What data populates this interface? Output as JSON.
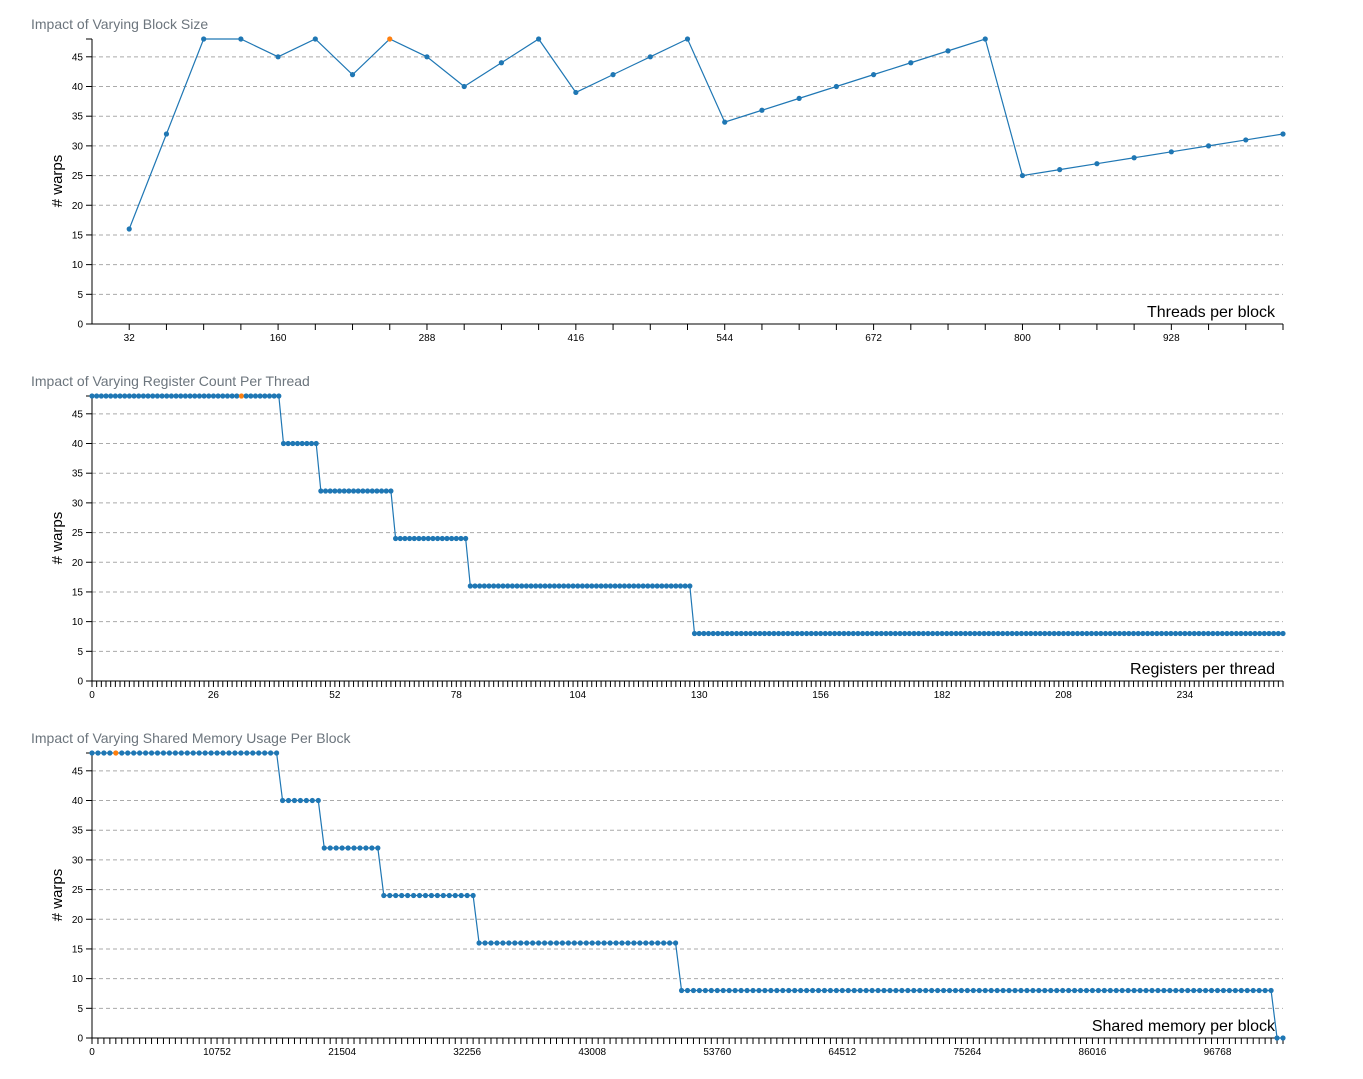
{
  "colors": {
    "series": "#1f77b4",
    "highlight": "#ff7f0e",
    "grid": "#aaaaaa",
    "title": "#6c757d"
  },
  "chart_data": [
    {
      "type": "line",
      "title": "Impact of Varying Block Size",
      "xlabel": "Threads per block",
      "ylabel": "# warps",
      "xlim": [
        0,
        1024
      ],
      "ylim": [
        0,
        48
      ],
      "yticks": [
        0,
        5,
        10,
        15,
        20,
        25,
        30,
        35,
        40,
        45
      ],
      "xtick_labels": [
        32,
        160,
        288,
        416,
        544,
        672,
        800,
        928
      ],
      "grid": "horizontal dashed",
      "highlight_x": 256,
      "x": [
        32,
        64,
        96,
        128,
        160,
        192,
        224,
        256,
        288,
        320,
        352,
        384,
        416,
        448,
        480,
        512,
        544,
        576,
        608,
        640,
        672,
        704,
        736,
        768,
        800,
        832,
        864,
        896,
        928,
        960,
        992,
        1024
      ],
      "y": [
        16,
        32,
        48,
        48,
        45,
        48,
        42,
        48,
        45,
        40,
        44,
        48,
        39,
        42,
        45,
        48,
        34,
        36,
        38,
        40,
        42,
        44,
        46,
        48,
        25,
        26,
        27,
        28,
        29,
        30,
        31,
        32
      ]
    },
    {
      "type": "line",
      "title": "Impact of Varying Register Count Per Thread",
      "xlabel": "Registers per thread",
      "ylabel": "# warps",
      "xlim": [
        0,
        255
      ],
      "ylim": [
        0,
        48
      ],
      "yticks": [
        0,
        5,
        10,
        15,
        20,
        25,
        30,
        35,
        40,
        45
      ],
      "xtick_labels": [
        0,
        26,
        52,
        78,
        104,
        130,
        156,
        182,
        208,
        234
      ],
      "grid": "horizontal dashed",
      "highlight_x": 32,
      "x": [
        0,
        1,
        2,
        3,
        4,
        5,
        6,
        7,
        8,
        9,
        10,
        11,
        12,
        13,
        14,
        15,
        16,
        17,
        18,
        19,
        20,
        21,
        22,
        23,
        24,
        25,
        26,
        27,
        28,
        29,
        30,
        31,
        32,
        33,
        34,
        35,
        36,
        37,
        38,
        39,
        40,
        41,
        42,
        43,
        44,
        45,
        46,
        47,
        48,
        49,
        50,
        51,
        52,
        53,
        54,
        55,
        56,
        57,
        58,
        59,
        60,
        61,
        62,
        63,
        64,
        65,
        66,
        67,
        68,
        69,
        70,
        71,
        72,
        73,
        74,
        75,
        76,
        77,
        78,
        79,
        80,
        81,
        82,
        83,
        84,
        85,
        86,
        87,
        88,
        89,
        90,
        91,
        92,
        93,
        94,
        95,
        96,
        97,
        98,
        99,
        100,
        101,
        102,
        103,
        104,
        105,
        106,
        107,
        108,
        109,
        110,
        111,
        112,
        113,
        114,
        115,
        116,
        117,
        118,
        119,
        120,
        121,
        122,
        123,
        124,
        125,
        126,
        127,
        128,
        129,
        130,
        131,
        132,
        133,
        134,
        135,
        136,
        137,
        138,
        139,
        140,
        141,
        142,
        143,
        144,
        145,
        146,
        147,
        148,
        149,
        150,
        151,
        152,
        153,
        154,
        155,
        156,
        157,
        158,
        159,
        160,
        161,
        162,
        163,
        164,
        165,
        166,
        167,
        168,
        169,
        170,
        171,
        172,
        173,
        174,
        175,
        176,
        177,
        178,
        179,
        180,
        181,
        182,
        183,
        184,
        185,
        186,
        187,
        188,
        189,
        190,
        191,
        192,
        193,
        194,
        195,
        196,
        197,
        198,
        199,
        200,
        201,
        202,
        203,
        204,
        205,
        206,
        207,
        208,
        209,
        210,
        211,
        212,
        213,
        214,
        215,
        216,
        217,
        218,
        219,
        220,
        221,
        222,
        223,
        224,
        225,
        226,
        227,
        228,
        229,
        230,
        231,
        232,
        233,
        234,
        235,
        236,
        237,
        238,
        239,
        240,
        241,
        242,
        243,
        244,
        245,
        246,
        247,
        248,
        249,
        250,
        251,
        252,
        253,
        254,
        255
      ],
      "y": [
        48,
        48,
        48,
        48,
        48,
        48,
        48,
        48,
        48,
        48,
        48,
        48,
        48,
        48,
        48,
        48,
        48,
        48,
        48,
        48,
        48,
        48,
        48,
        48,
        48,
        48,
        48,
        48,
        48,
        48,
        48,
        48,
        48,
        48,
        48,
        48,
        48,
        48,
        48,
        48,
        48,
        40,
        40,
        40,
        40,
        40,
        40,
        40,
        40,
        32,
        32,
        32,
        32,
        32,
        32,
        32,
        32,
        32,
        32,
        32,
        32,
        32,
        32,
        32,
        32,
        24,
        24,
        24,
        24,
        24,
        24,
        24,
        24,
        24,
        24,
        24,
        24,
        24,
        24,
        24,
        24,
        16,
        16,
        16,
        16,
        16,
        16,
        16,
        16,
        16,
        16,
        16,
        16,
        16,
        16,
        16,
        16,
        16,
        16,
        16,
        16,
        16,
        16,
        16,
        16,
        16,
        16,
        16,
        16,
        16,
        16,
        16,
        16,
        16,
        16,
        16,
        16,
        16,
        16,
        16,
        16,
        16,
        16,
        16,
        16,
        16,
        16,
        16,
        16,
        8,
        8,
        8,
        8,
        8,
        8,
        8,
        8,
        8,
        8,
        8,
        8,
        8,
        8,
        8,
        8,
        8,
        8,
        8,
        8,
        8,
        8,
        8,
        8,
        8,
        8,
        8,
        8,
        8,
        8,
        8,
        8,
        8,
        8,
        8,
        8,
        8,
        8,
        8,
        8,
        8,
        8,
        8,
        8,
        8,
        8,
        8,
        8,
        8,
        8,
        8,
        8,
        8,
        8,
        8,
        8,
        8,
        8,
        8,
        8,
        8,
        8,
        8,
        8,
        8,
        8,
        8,
        8,
        8,
        8,
        8,
        8,
        8,
        8,
        8,
        8,
        8,
        8,
        8,
        8,
        8,
        8,
        8,
        8,
        8,
        8,
        8,
        8,
        8,
        8,
        8,
        8,
        8,
        8,
        8,
        8,
        8,
        8,
        8,
        8,
        8,
        8,
        8,
        8,
        8,
        8,
        8,
        8,
        8,
        8,
        8,
        8,
        8,
        8,
        8,
        8,
        8,
        8,
        8,
        8,
        8,
        8,
        8,
        8,
        8,
        8,
        8
      ]
    },
    {
      "type": "line",
      "title": "Impact of Varying Shared Memory Usage Per Block",
      "xlabel": "Shared memory per block",
      "ylabel": "# warps",
      "xlim": [
        0,
        102400
      ],
      "ylim": [
        0,
        48
      ],
      "yticks": [
        0,
        5,
        10,
        15,
        20,
        25,
        30,
        35,
        40,
        45
      ],
      "xtick_labels": [
        0,
        10752,
        21504,
        32256,
        43008,
        53760,
        64512,
        75264,
        86016,
        96768
      ],
      "grid": "horizontal dashed",
      "highlight_x": 2048,
      "x": [
        0,
        512,
        1024,
        1536,
        2048,
        2560,
        3072,
        3584,
        4096,
        4608,
        5120,
        5632,
        6144,
        6656,
        7168,
        7680,
        8192,
        8704,
        9216,
        9728,
        10240,
        10752,
        11264,
        11776,
        12288,
        12800,
        13312,
        13824,
        14336,
        14848,
        15360,
        15872,
        16384,
        16896,
        17408,
        17920,
        18432,
        18944,
        19456,
        19968,
        20480,
        20992,
        21504,
        22016,
        22528,
        23040,
        23552,
        24064,
        24576,
        25088,
        25600,
        26112,
        26624,
        27136,
        27648,
        28160,
        28672,
        29184,
        29696,
        30208,
        30720,
        31232,
        31744,
        32256,
        32768,
        33280,
        33792,
        34304,
        34816,
        35328,
        35840,
        36352,
        36864,
        37376,
        37888,
        38400,
        38912,
        39424,
        39936,
        40448,
        40960,
        41472,
        41984,
        42496,
        43008,
        43520,
        44032,
        44544,
        45056,
        45568,
        46080,
        46592,
        47104,
        47616,
        48128,
        48640,
        49152,
        49664,
        50176,
        50688,
        51200,
        51712,
        52224,
        52736,
        53248,
        53760,
        54272,
        54784,
        55296,
        55808,
        56320,
        56832,
        57344,
        57856,
        58368,
        58880,
        59392,
        59904,
        60416,
        60928,
        61440,
        61952,
        62464,
        62976,
        63488,
        64000,
        64512,
        65024,
        65536,
        66048,
        66560,
        67072,
        67584,
        68096,
        68608,
        69120,
        69632,
        70144,
        70656,
        71168,
        71680,
        72192,
        72704,
        73216,
        73728,
        74240,
        74752,
        75264,
        75776,
        76288,
        76800,
        77312,
        77824,
        78336,
        78848,
        79360,
        79872,
        80384,
        80896,
        81408,
        81920,
        82432,
        82944,
        83456,
        83968,
        84480,
        84992,
        85504,
        86016,
        86528,
        87040,
        87552,
        88064,
        88576,
        89088,
        89600,
        90112,
        90624,
        91136,
        91648,
        92160,
        92672,
        93184,
        93696,
        94208,
        94720,
        95232,
        95744,
        96256,
        96768,
        97280,
        97792,
        98304,
        98816,
        99328,
        99840,
        100352,
        100864,
        101376,
        101888,
        102400
      ],
      "y": [
        48,
        48,
        48,
        48,
        48,
        48,
        48,
        48,
        48,
        48,
        48,
        48,
        48,
        48,
        48,
        48,
        48,
        48,
        48,
        48,
        48,
        48,
        48,
        48,
        48,
        48,
        48,
        48,
        48,
        48,
        48,
        48,
        40,
        40,
        40,
        40,
        40,
        40,
        40,
        32,
        32,
        32,
        32,
        32,
        32,
        32,
        32,
        32,
        32,
        24,
        24,
        24,
        24,
        24,
        24,
        24,
        24,
        24,
        24,
        24,
        24,
        24,
        24,
        24,
        24,
        16,
        16,
        16,
        16,
        16,
        16,
        16,
        16,
        16,
        16,
        16,
        16,
        16,
        16,
        16,
        16,
        16,
        16,
        16,
        16,
        16,
        16,
        16,
        16,
        16,
        16,
        16,
        16,
        16,
        16,
        16,
        16,
        16,
        16,
        8,
        8,
        8,
        8,
        8,
        8,
        8,
        8,
        8,
        8,
        8,
        8,
        8,
        8,
        8,
        8,
        8,
        8,
        8,
        8,
        8,
        8,
        8,
        8,
        8,
        8,
        8,
        8,
        8,
        8,
        8,
        8,
        8,
        8,
        8,
        8,
        8,
        8,
        8,
        8,
        8,
        8,
        8,
        8,
        8,
        8,
        8,
        8,
        8,
        8,
        8,
        8,
        8,
        8,
        8,
        8,
        8,
        8,
        8,
        8,
        8,
        8,
        8,
        8,
        8,
        8,
        8,
        8,
        8,
        8,
        8,
        8,
        8,
        8,
        8,
        8,
        8,
        8,
        8,
        8,
        8,
        8,
        8,
        8,
        8,
        8,
        8,
        8,
        8,
        8,
        8,
        8,
        8,
        8,
        8,
        8,
        8,
        8,
        8,
        8,
        0,
        0
      ]
    }
  ]
}
